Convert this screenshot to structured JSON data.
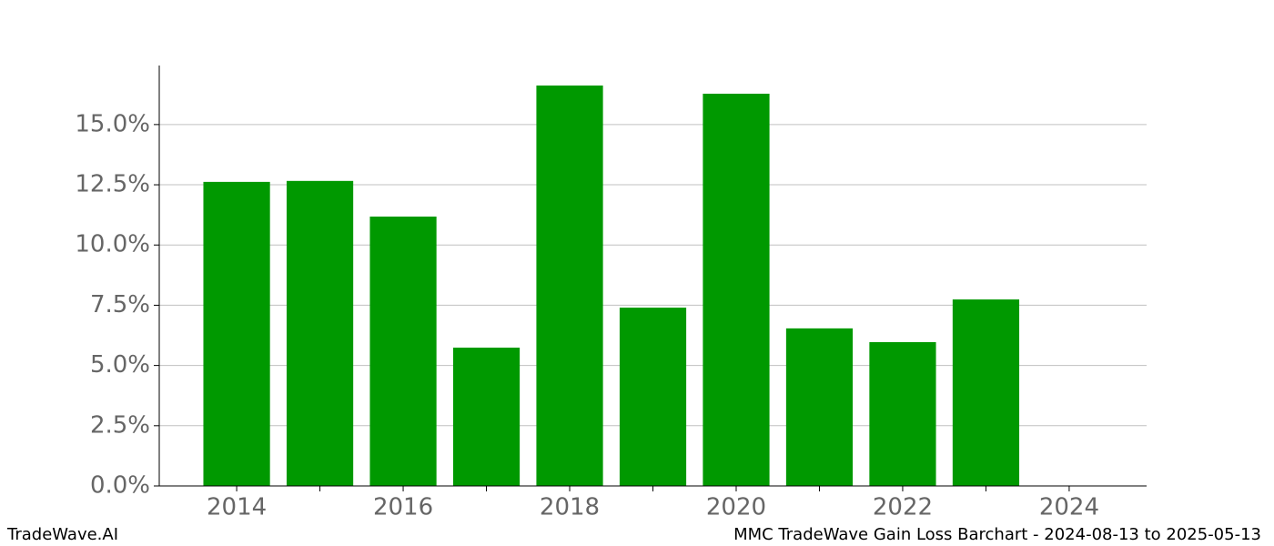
{
  "chart_data": {
    "type": "bar",
    "x": [
      2014,
      2015,
      2016,
      2017,
      2018,
      2019,
      2020,
      2021,
      2022,
      2023
    ],
    "values": [
      12.62,
      12.66,
      11.18,
      5.74,
      16.62,
      7.4,
      16.28,
      6.54,
      5.97,
      7.74
    ],
    "color": "#009900",
    "xlim": [
      2013.07,
      2024.93
    ],
    "xticks": [
      2014,
      2016,
      2018,
      2020,
      2022,
      2024
    ],
    "xminorticks": [
      2015,
      2017,
      2019,
      2021,
      2023
    ],
    "ylim": [
      0,
      17.45
    ],
    "yticks": [
      {
        "value": 0,
        "label": "0.0%"
      },
      {
        "value": 2.5,
        "label": "2.5%"
      },
      {
        "value": 5,
        "label": "5.0%"
      },
      {
        "value": 7.5,
        "label": "7.5%"
      },
      {
        "value": 10,
        "label": "10.0%"
      },
      {
        "value": 12.5,
        "label": "12.5%"
      },
      {
        "value": 15,
        "label": "15.0%"
      }
    ],
    "grid": true,
    "footer_left": "TradeWave.AI",
    "footer_right": "MMC TradeWave Gain Loss Barchart - 2024-08-13 to 2025-05-13"
  }
}
